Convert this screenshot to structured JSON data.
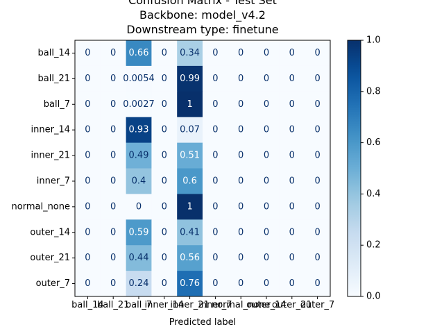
{
  "chart_data": {
    "type": "heatmap",
    "title_lines": [
      "Confusion Matrix - Test Set",
      "Backbone: model_v4.2",
      "Downstream type: finetune"
    ],
    "xlabel": "Predicted label",
    "ylabel": "",
    "row_labels": [
      "ball_14",
      "ball_21",
      "ball_7",
      "inner_14",
      "inner_21",
      "inner_7",
      "normal_none",
      "outer_14",
      "outer_21",
      "outer_7"
    ],
    "col_labels": [
      "ball_14",
      "ball_21",
      "ball_7",
      "inner_14",
      "inner_21",
      "inner_7",
      "normal_none",
      "outer_14",
      "outer_21",
      "outer_7"
    ],
    "values": [
      [
        0,
        0,
        0.66,
        0,
        0.34,
        0,
        0,
        0,
        0,
        0
      ],
      [
        0,
        0,
        0.0054,
        0,
        0.99,
        0,
        0,
        0,
        0,
        0
      ],
      [
        0,
        0,
        0.0027,
        0,
        1,
        0,
        0,
        0,
        0,
        0
      ],
      [
        0,
        0,
        0.93,
        0,
        0.07,
        0,
        0,
        0,
        0,
        0
      ],
      [
        0,
        0,
        0.49,
        0,
        0.51,
        0,
        0,
        0,
        0,
        0
      ],
      [
        0,
        0,
        0.4,
        0,
        0.6,
        0,
        0,
        0,
        0,
        0
      ],
      [
        0,
        0,
        0,
        0,
        1,
        0,
        0,
        0,
        0,
        0
      ],
      [
        0,
        0,
        0.59,
        0,
        0.41,
        0,
        0,
        0,
        0,
        0
      ],
      [
        0,
        0,
        0.44,
        0,
        0.56,
        0,
        0,
        0,
        0,
        0
      ],
      [
        0,
        0,
        0.24,
        0,
        0.76,
        0,
        0,
        0,
        0,
        0
      ]
    ],
    "colormap": "Blues",
    "colorbar": {
      "range": [
        0.0,
        1.0
      ],
      "ticks": [
        0.0,
        0.2,
        0.4,
        0.6,
        0.8,
        1.0
      ],
      "tick_labels": [
        "0.0",
        "0.2",
        "0.4",
        "0.6",
        "0.8",
        "1.0"
      ]
    },
    "text_color_light": "#ffffff",
    "text_color_dark": "#08306b"
  }
}
